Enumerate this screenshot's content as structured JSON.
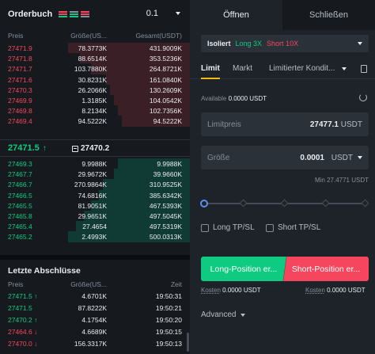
{
  "orderbook": {
    "title": "Orderbuch",
    "precision": "0.1",
    "columns": {
      "price": "Preis",
      "size": "Größe(US...",
      "total": "Gesamt(USDT)"
    },
    "asks": [
      {
        "price": "27471.9",
        "size": "78.3773K",
        "total": "431.9009K",
        "depth": 0.64
      },
      {
        "price": "27471.8",
        "size": "88.6514K",
        "total": "353.5236K",
        "depth": 0.58
      },
      {
        "price": "27471.7",
        "size": "103.7880K",
        "total": "264.8721K",
        "depth": 0.52
      },
      {
        "price": "27471.6",
        "size": "30.8231K",
        "total": "161.0840K",
        "depth": 0.44
      },
      {
        "price": "27470.3",
        "size": "26.2066K",
        "total": "130.2609K",
        "depth": 0.42
      },
      {
        "price": "27469.9",
        "size": "1.3185K",
        "total": "104.0542K",
        "depth": 0.4
      },
      {
        "price": "27469.8",
        "size": "8.2134K",
        "total": "102.7356K",
        "depth": 0.38
      },
      {
        "price": "27469.4",
        "size": "94.5222K",
        "total": "94.5222K",
        "depth": 0.36
      }
    ],
    "mid_price": "27471.5",
    "mid_arrow": "↑",
    "mark_price": "27470.2",
    "bids": [
      {
        "price": "27469.3",
        "size": "9.9988K",
        "total": "9.9988K",
        "depth": 0.38
      },
      {
        "price": "27467.7",
        "size": "29.9672K",
        "total": "39.9660K",
        "depth": 0.4
      },
      {
        "price": "27466.7",
        "size": "270.9864K",
        "total": "310.9525K",
        "depth": 0.46
      },
      {
        "price": "27466.5",
        "size": "74.6816K",
        "total": "385.6342K",
        "depth": 0.48
      },
      {
        "price": "27465.5",
        "size": "81.9051K",
        "total": "467.5393K",
        "depth": 0.52
      },
      {
        "price": "27465.8",
        "size": "29.9651K",
        "total": "497.5045K",
        "depth": 0.56
      },
      {
        "price": "27465.4",
        "size": "27.4654",
        "total": "497.5319K",
        "depth": 0.6
      },
      {
        "price": "27465.2",
        "size": "2.4993K",
        "total": "500.0313K",
        "depth": 0.64
      }
    ]
  },
  "trades": {
    "title": "Letzte Abschlüsse",
    "columns": {
      "price": "Preis",
      "size": "Größe(US...",
      "time": "Zeit"
    },
    "rows": [
      {
        "price": "27471.5 ↑",
        "size": "4.6701K",
        "time": "19:50:31",
        "side": "up"
      },
      {
        "price": "27471.5",
        "size": "87.8222K",
        "time": "19:50:21",
        "side": "up"
      },
      {
        "price": "27470.2 ↑",
        "size": "4.1754K",
        "time": "19:50:20",
        "side": "up"
      },
      {
        "price": "27464.6 ↓",
        "size": "4.6689K",
        "time": "19:50:15",
        "side": "down"
      },
      {
        "price": "27470.0 ↓",
        "size": "156.3317K",
        "time": "19:50:13",
        "side": "down"
      }
    ]
  },
  "order_panel": {
    "tabs": [
      "Öffnen",
      "Schließen"
    ],
    "margin_mode": "Isoliert",
    "leverage_long": "Long 3X",
    "leverage_short": "Short 10X",
    "order_types": [
      "Limit",
      "Markt",
      "Limitierter Kondit..."
    ],
    "available_label": "Available",
    "available_value": "0.0000 USDT",
    "limit_price_label": "Limitpreis",
    "limit_price_value": "27477.1",
    "limit_price_unit": "USDT",
    "size_label": "Größe",
    "size_value": "0.0001",
    "size_unit": "USDT",
    "min_label": "Min 27.4771 USDT",
    "slider_percent": 0,
    "long_tpsl": "Long TP/SL",
    "short_tpsl": "Short TP/SL",
    "long_button": "Long-Position er...",
    "short_button": "Short-Position er...",
    "cost_label": "Kosten",
    "cost_long_value": "0.0000 USDT",
    "cost_short_value": "0.0000 USDT",
    "advanced": "Advanced"
  },
  "colors": {
    "green": "#0ecb81",
    "red": "#f6465d",
    "accent": "#f0b90b"
  }
}
